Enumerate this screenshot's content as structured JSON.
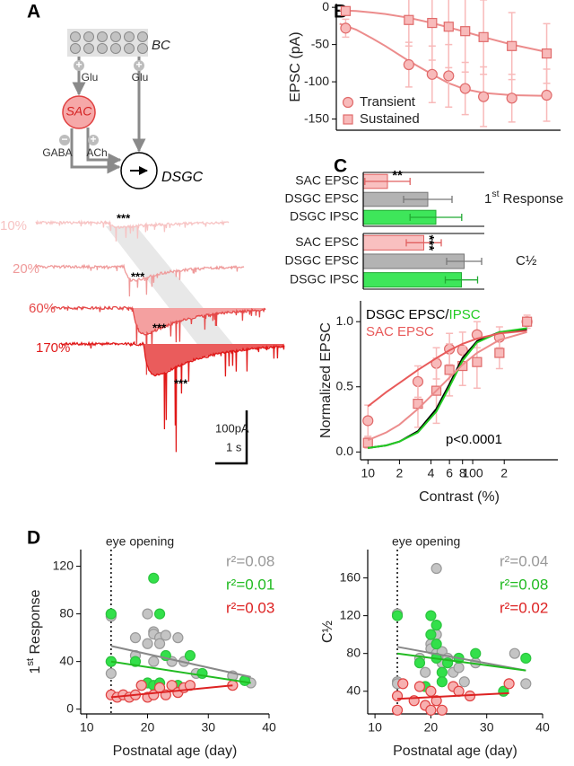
{
  "panel_labels": [
    "A",
    "B",
    "C",
    "D"
  ],
  "diagram": {
    "bipolar": "BC",
    "glu_sign_left": "+",
    "glu_left": "Glu",
    "glu_sign_right": "+",
    "glu_right": "Glu",
    "sac": "SAC",
    "gaba_sign": "−",
    "gaba": "GABA",
    "ach_sign": "+",
    "ach": "ACh",
    "dsgc": "DSGC"
  },
  "traces": {
    "contrasts": [
      "10%",
      "20%",
      "60%",
      "170%"
    ],
    "colors": [
      "#f7c3c3",
      "#ef9a9a",
      "#e54848",
      "#e01818"
    ],
    "significance": [
      "***",
      "***",
      "***",
      "***"
    ],
    "scale_current": "100pA",
    "scale_time": "1 s"
  },
  "chart_data": [
    {
      "type": "scatter",
      "ylabel": "EPSC (pA)",
      "xscale": "log",
      "xlim": [
        8.5,
        420
      ],
      "ylim": [
        -165,
        5
      ],
      "yticks": [
        0,
        -50,
        -100,
        -150
      ],
      "legend": "lower left",
      "series": [
        {
          "marker": "line",
          "color": "#ec8c8c",
          "x": [
            9,
            12,
            16,
            20,
            30,
            45,
            60,
            80,
            110,
            180,
            330
          ],
          "values": [
            -22,
            -30,
            -42,
            -52,
            -72,
            -90,
            -102,
            -110,
            -115,
            -118,
            -119
          ]
        },
        {
          "marker": "line",
          "color": "#ec8c8c",
          "x": [
            9,
            12,
            16,
            20,
            30,
            45,
            60,
            80,
            110,
            180,
            330
          ],
          "values": [
            -4,
            -5,
            -7,
            -9,
            -14,
            -21,
            -27,
            -33,
            -40,
            -50,
            -60
          ]
        },
        {
          "name": "Transient",
          "marker": "circle",
          "color": "#e06a6a",
          "fill": "#f8baba",
          "x": [
            10,
            30,
            45,
            60,
            80,
            110,
            180,
            330
          ],
          "values": [
            -28,
            -77,
            -90,
            -92,
            -109,
            -120,
            -122,
            -118
          ],
          "errors": [
            12,
            30,
            38,
            42,
            35,
            40,
            32,
            35
          ]
        },
        {
          "name": "Sustained",
          "marker": "square",
          "color": "#e06a6a",
          "fill": "#f8baba",
          "x": [
            10,
            30,
            45,
            60,
            80,
            110,
            180,
            330
          ],
          "values": [
            -5,
            -17,
            -21,
            -26,
            -32,
            -40,
            -52,
            -62
          ],
          "errors": [
            5,
            35,
            50,
            55,
            55,
            50,
            45,
            40
          ]
        }
      ]
    },
    {
      "type": "bar",
      "orientation": "horizontal",
      "group_label": {
        "base": "1",
        "sup": "st",
        "text": " Response"
      },
      "categories": [
        "SAC EPSC",
        "DSGC EPSC",
        "DSGC IPSC"
      ],
      "values": [
        15,
        40,
        45
      ],
      "errors": [
        14,
        15,
        16
      ],
      "colors": [
        "#f9c0c0",
        "#b3b3b3",
        "#3ee65a"
      ],
      "edge_colors": [
        "#e06060",
        "#777777",
        "#22aa33"
      ],
      "xlim": [
        0,
        120
      ],
      "significance": {
        "text": "**",
        "category": 0
      }
    },
    {
      "type": "bar",
      "orientation": "horizontal",
      "group_label": "C½",
      "categories": [
        "SAC EPSC",
        "DSGC EPSC",
        "DSGC IPSC"
      ],
      "values": [
        45,
        75,
        73
      ],
      "errors": [
        13,
        13,
        12
      ],
      "colors": [
        "#f9c0c0",
        "#b3b3b3",
        "#3ee65a"
      ],
      "edge_colors": [
        "#e06060",
        "#777777",
        "#22aa33"
      ],
      "xlim": [
        0,
        144
      ],
      "significance": {
        "text": "***",
        "category": 0
      }
    },
    {
      "type": "scatter",
      "xlabel": "Contrast (%)",
      "ylabel": "Normalized EPSC",
      "xscale": "log",
      "xlim": [
        8.5,
        650
      ],
      "xticks": [
        10,
        {
          "value": 20,
          "label": "2"
        },
        {
          "value": 40,
          "label": "4"
        },
        {
          "value": 60,
          "label": "6"
        },
        {
          "value": 80,
          "label": "8"
        },
        100,
        {
          "value": 200,
          "label": "2"
        }
      ],
      "ylim": [
        -0.06,
        1.16
      ],
      "yticks": [
        {
          "value": 0,
          "label": "0.0"
        },
        0.5,
        {
          "value": 1,
          "label": "1.0"
        }
      ],
      "legend": "upper left",
      "annotations": [
        {
          "text": "p<0.0001",
          "color": "#000000"
        }
      ],
      "series": [
        {
          "marker": "circle",
          "color": "#e06a6a",
          "fill": "#f8baba",
          "x": [
            10,
            30,
            45,
            60,
            80,
            110,
            180,
            330
          ],
          "values": [
            0.24,
            0.54,
            0.68,
            0.79,
            0.78,
            0.9,
            0.88,
            1.0
          ],
          "errors": [
            0.12,
            0.12,
            0.12,
            0.12,
            0.14,
            0.1,
            0.08,
            0.02
          ]
        },
        {
          "marker": "square",
          "color": "#e06a6a",
          "fill": "#f8baba",
          "x": [
            10,
            30,
            45,
            60,
            80,
            110,
            180,
            330
          ],
          "values": [
            0.07,
            0.37,
            0.47,
            0.63,
            0.66,
            0.69,
            0.76,
            1.0
          ],
          "errors": [
            0.04,
            0.18,
            0.25,
            0.2,
            0.15,
            0.2,
            0.12,
            0.05
          ]
        },
        {
          "name": "DSGC EPSC/",
          "marker": "line",
          "color": "#000000",
          "x": [
            10,
            15,
            20,
            30,
            45,
            60,
            80,
            110,
            180,
            330
          ],
          "values": [
            0.03,
            0.05,
            0.08,
            0.16,
            0.33,
            0.52,
            0.72,
            0.85,
            0.92,
            0.94
          ]
        },
        {
          "name": "IPSC",
          "marker": "line",
          "color": "#22cc22",
          "x": [
            10,
            15,
            20,
            30,
            45,
            60,
            80,
            110,
            180,
            330
          ],
          "values": [
            0.03,
            0.05,
            0.08,
            0.15,
            0.31,
            0.5,
            0.7,
            0.84,
            0.92,
            0.95
          ]
        },
        {
          "name": "SAC EPSC",
          "marker": "line",
          "color": "#e85a5a",
          "x": [
            10,
            15,
            20,
            30,
            45,
            60,
            80,
            110,
            180,
            330
          ],
          "values": [
            0.35,
            0.46,
            0.53,
            0.63,
            0.72,
            0.78,
            0.83,
            0.87,
            0.91,
            0.93
          ]
        },
        {
          "marker": "line",
          "color": "#ec8c8c",
          "x": [
            10,
            15,
            20,
            30,
            45,
            60,
            80,
            110,
            180,
            330
          ],
          "values": [
            0.09,
            0.15,
            0.21,
            0.33,
            0.47,
            0.57,
            0.67,
            0.76,
            0.86,
            0.92
          ]
        }
      ]
    },
    {
      "type": "scatter",
      "xlabel": "Postnatal age (day)",
      "ylabel": {
        "base": "1",
        "sup": "st",
        "text": " Response"
      },
      "xlim": [
        9,
        40
      ],
      "xticks": [
        10,
        20,
        30,
        40
      ],
      "ylim": [
        -4,
        134
      ],
      "yticks": [
        0,
        40,
        80,
        120
      ],
      "vline": {
        "x": 14,
        "label": "eye opening"
      },
      "annotations": [
        {
          "text": "r²=0.08",
          "color": "#999999"
        },
        {
          "text": "r²=0.01",
          "color": "#22bb22"
        },
        {
          "text": "r²=0.03",
          "color": "#dd2222"
        }
      ],
      "series": [
        {
          "marker": "circle",
          "color": "#999999",
          "fill": "#c4c4c4",
          "x": [
            14,
            14,
            14,
            14,
            18,
            18,
            19,
            20,
            20,
            21,
            21,
            21,
            22,
            22,
            23,
            24,
            25,
            25,
            26,
            28,
            34,
            37
          ],
          "values": [
            80,
            78,
            40,
            30,
            45,
            60,
            20,
            80,
            55,
            65,
            63,
            40,
            60,
            55,
            62,
            40,
            60,
            20,
            40,
            30,
            28,
            22
          ]
        },
        {
          "marker": "circle",
          "color": "#2bc43e",
          "fill": "#33e04a",
          "x": [
            14,
            14,
            18,
            20,
            21,
            21,
            22,
            22,
            23,
            25,
            27,
            29,
            36
          ],
          "values": [
            80,
            40,
            40,
            22,
            110,
            20,
            80,
            22,
            45,
            20,
            45,
            30,
            24
          ]
        },
        {
          "marker": "circle",
          "color": "#e04040",
          "fill": "#f7b0b0",
          "x": [
            14,
            15,
            16,
            17,
            18,
            19,
            20,
            21,
            22,
            23,
            24,
            25,
            26,
            27,
            34
          ],
          "values": [
            12,
            10,
            12,
            10,
            12,
            20,
            10,
            12,
            18,
            12,
            20,
            14,
            18,
            20,
            20
          ]
        },
        {
          "marker": "line",
          "color": "#888888",
          "x": [
            14,
            37
          ],
          "values": [
            53,
            27
          ]
        },
        {
          "marker": "line",
          "color": "#22bb22",
          "x": [
            14,
            37
          ],
          "values": [
            40,
            22
          ]
        },
        {
          "marker": "line",
          "color": "#dd2222",
          "x": [
            14,
            34
          ],
          "values": [
            10,
            20
          ]
        }
      ]
    },
    {
      "type": "scatter",
      "xlabel": "Postnatal age (day)",
      "ylabel": "C½",
      "xlim": [
        8.7,
        40
      ],
      "xticks": [
        10,
        20,
        30,
        40
      ],
      "ylim": [
        16,
        190
      ],
      "yticks": [
        40,
        80,
        120,
        160
      ],
      "vline": {
        "x": 14,
        "label": "eye opening"
      },
      "annotations": [
        {
          "text": "r²=0.04",
          "color": "#999999"
        },
        {
          "text": "r²=0.08",
          "color": "#22bb22"
        },
        {
          "text": "r²=0.02",
          "color": "#dd2222"
        }
      ],
      "series": [
        {
          "marker": "circle",
          "color": "#999999",
          "fill": "#c4c4c4",
          "x": [
            14,
            14,
            14,
            18,
            19,
            20,
            20,
            21,
            21,
            21,
            22,
            22,
            23,
            24,
            25,
            26,
            28,
            35,
            37
          ],
          "values": [
            122,
            50,
            48,
            75,
            60,
            90,
            85,
            170,
            100,
            80,
            82,
            70,
            75,
            60,
            65,
            50,
            70,
            80,
            48
          ]
        },
        {
          "marker": "circle",
          "color": "#2bc43e",
          "fill": "#33e04a",
          "x": [
            14,
            18,
            19,
            20,
            20,
            21,
            21,
            21,
            22,
            22,
            23,
            25,
            28,
            33,
            37
          ],
          "values": [
            120,
            70,
            45,
            120,
            100,
            110,
            90,
            75,
            60,
            50,
            70,
            75,
            80,
            40,
            75
          ]
        },
        {
          "marker": "circle",
          "color": "#e04040",
          "fill": "#f7b0b0",
          "x": [
            14,
            14,
            15,
            17,
            18,
            19,
            20,
            20,
            21,
            22,
            24,
            25,
            27,
            34
          ],
          "values": [
            20,
            35,
            48,
            30,
            45,
            25,
            40,
            20,
            30,
            20,
            45,
            40,
            35,
            48
          ]
        },
        {
          "marker": "line",
          "color": "#888888",
          "x": [
            14,
            37
          ],
          "values": [
            87,
            62
          ]
        },
        {
          "marker": "line",
          "color": "#22bb22",
          "x": [
            14,
            37
          ],
          "values": [
            80,
            62
          ]
        },
        {
          "marker": "line",
          "color": "#dd2222",
          "x": [
            14,
            34
          ],
          "values": [
            32,
            38
          ]
        }
      ]
    }
  ]
}
